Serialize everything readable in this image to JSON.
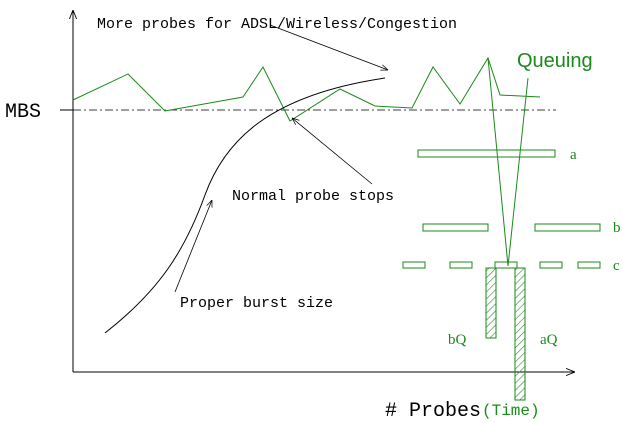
{
  "header": {
    "title": "More probes for ADSL/Wireless/Congestion"
  },
  "labels": {
    "queuing": "Queuing",
    "mbs": "MBS",
    "normal_stop": "Normal probe stops",
    "proper_burst": "Proper burst size",
    "a": "a",
    "b": "b",
    "c": "c",
    "bq": "bQ",
    "aq": "aQ",
    "x_axis": "# Probes",
    "x_axis_unit": "(Time)"
  }
}
